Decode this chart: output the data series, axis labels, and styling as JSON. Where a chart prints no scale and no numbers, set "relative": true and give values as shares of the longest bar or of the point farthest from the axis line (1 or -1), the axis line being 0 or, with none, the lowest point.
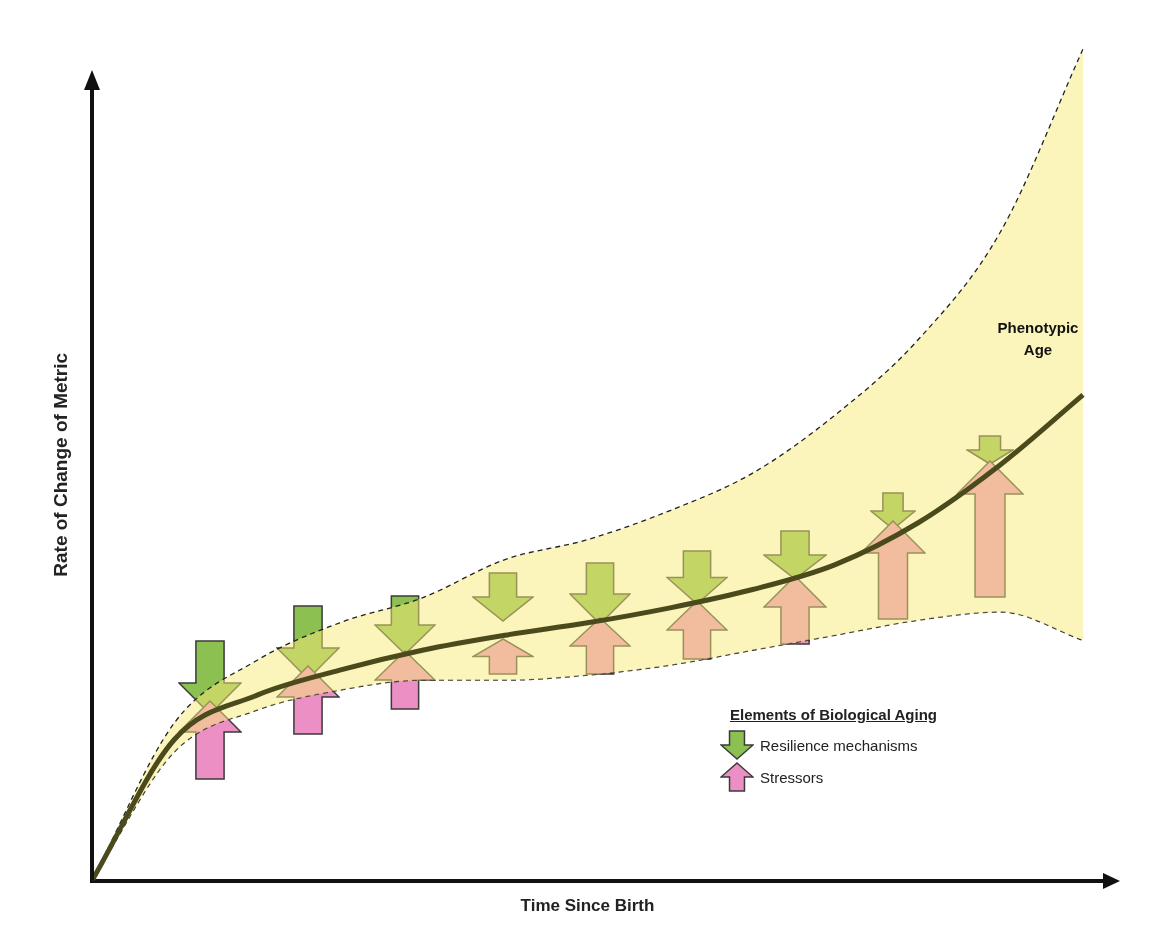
{
  "chart_data": {
    "type": "line",
    "relative": true,
    "xlabel": "Time Since Birth",
    "ylabel": "Rate of Change of Metric",
    "categories": [
      null,
      null,
      null,
      null,
      null,
      null,
      null,
      null,
      null,
      null,
      null,
      null,
      null
    ],
    "series": [
      {
        "name": "Phenotypic Age",
        "color": "#4b4a1c",
        "values": [
          0,
          0.17,
          0.223,
          0.253,
          0.277,
          0.295,
          0.31,
          0.328,
          0.35,
          0.38,
          0.43,
          0.5,
          0.584
        ]
      },
      {
        "color": "#222222",
        "line_style": "dashed",
        "values": [
          0,
          0.19,
          0.265,
          0.31,
          0.34,
          0.386,
          0.41,
          0.445,
          0.49,
          0.56,
          0.65,
          0.78,
          1
        ]
      },
      {
        "color": "#222222",
        "line_style": "dashed",
        "values": [
          0,
          0.155,
          0.205,
          0.229,
          0.241,
          0.241,
          0.247,
          0.259,
          0.277,
          0.295,
          0.313,
          0.323,
          0.289
        ]
      }
    ],
    "annotations": [
      "Elements of Biological Aging",
      "Resilience mechanisms",
      "Stressors"
    ],
    "grid": false,
    "legend": false,
    "marker": "none",
    "line_style": "solid",
    "tick_labels": false
  }
}
